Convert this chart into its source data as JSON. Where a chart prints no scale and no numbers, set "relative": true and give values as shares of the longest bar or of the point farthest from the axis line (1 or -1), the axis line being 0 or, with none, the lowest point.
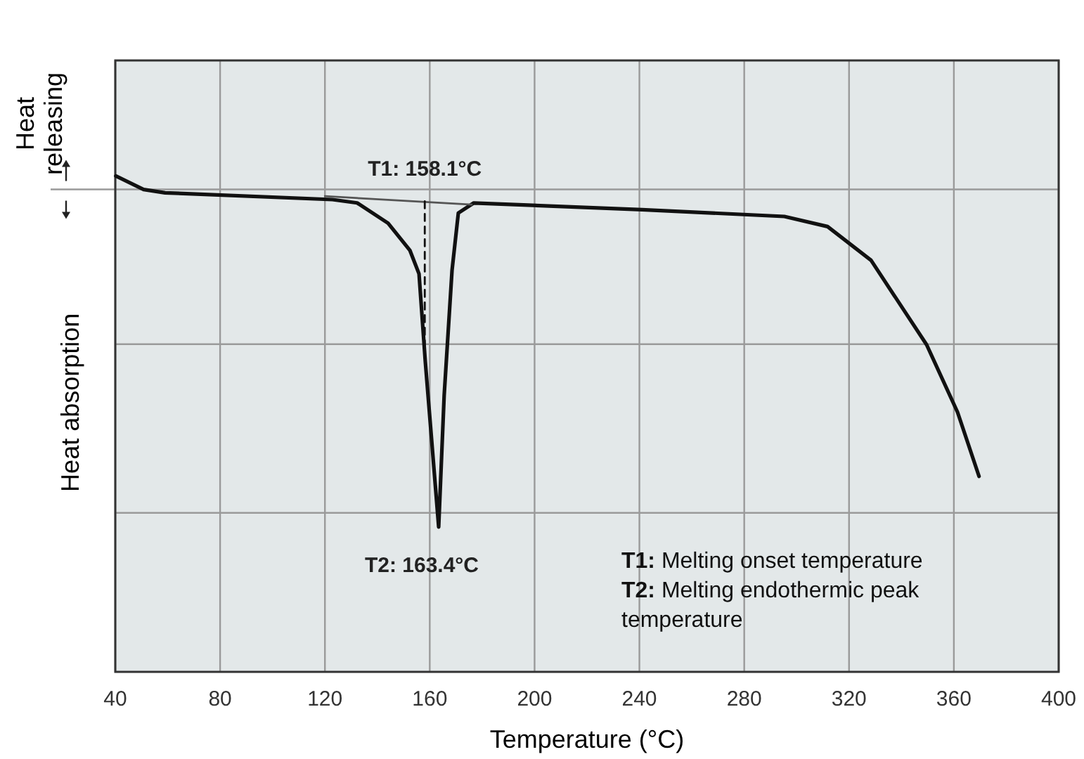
{
  "chart_data": {
    "type": "line",
    "relative": true,
    "xlabel": "Temperature (°C)",
    "ylabel": "Heat absorption",
    "xlim": [
      40,
      400
    ],
    "xticks": [
      40,
      80,
      120,
      160,
      200,
      240,
      280,
      320,
      360,
      400
    ],
    "grid": true,
    "marker": "none",
    "series": [
      {
        "color": "#111111",
        "x": [
          40.2,
          50.8,
          59,
          122.9,
          132.3,
          144.1,
          152.4,
          155.9,
          158.3,
          163.4,
          165.5,
          168.5,
          170.9,
          176.8,
          241,
          295.3,
          311.8,
          328.4,
          349.6,
          361.4,
          369.6
        ],
        "values": [
          0.04,
          0,
          -0.01,
          -0.03,
          -0.04,
          -0.1,
          -0.18,
          -0.25,
          -0.51,
          -1,
          -0.61,
          -0.24,
          -0.07,
          -0.04,
          -0.06,
          -0.08,
          -0.11,
          -0.21,
          -0.46,
          -0.66,
          -0.85
        ]
      },
      {
        "color": "#555555",
        "x": [
          120,
          176
        ],
        "values": [
          -0.02,
          -0.045
        ]
      },
      {
        "color": "#111111",
        "line_style": "dashed",
        "x": [
          158.1,
          158.1
        ],
        "values": [
          -0.035,
          -0.5
        ]
      }
    ],
    "annotations": [
      "Heat releasing",
      {
        "text": "T1: 158.1°C",
        "x": 158.1,
        "y": -0.035
      },
      {
        "text": "T2: 163.4°C",
        "x": 163.4,
        "y": -1
      },
      "T1: Melting onset temperature",
      "T2: Melting endothermic peak temperature"
    ]
  }
}
